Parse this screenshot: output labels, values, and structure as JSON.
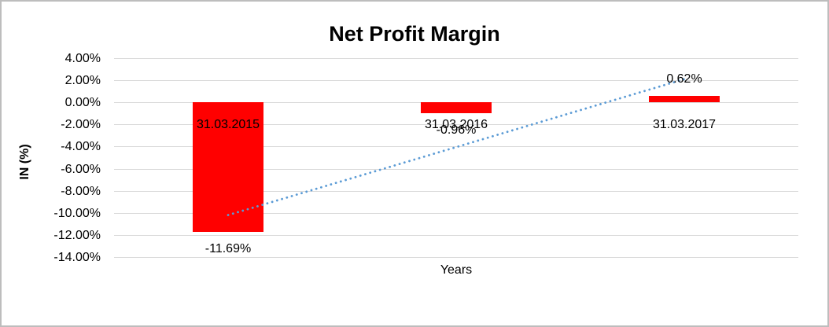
{
  "chart_data": {
    "type": "bar",
    "title": "Net Profit Margin",
    "ylabel": "IN (%)",
    "xlabel": "Years",
    "categories": [
      "31.03.2015",
      "31.03.2016",
      "31.03.2017"
    ],
    "values": [
      -11.69,
      -0.96,
      0.62
    ],
    "data_labels": [
      "-11.69%",
      "-0.96%",
      "0.62%"
    ],
    "y_ticks": [
      {
        "label": "4.00%",
        "value": 4
      },
      {
        "label": "2.00%",
        "value": 2
      },
      {
        "label": "0.00%",
        "value": 0
      },
      {
        "label": "-2.00%",
        "value": -2
      },
      {
        "label": "-4.00%",
        "value": -4
      },
      {
        "label": "-6.00%",
        "value": -6
      },
      {
        "label": "-8.00%",
        "value": -8
      },
      {
        "label": "-10.00%",
        "value": -10
      },
      {
        "label": "-12.00%",
        "value": -12
      },
      {
        "label": "-14.00%",
        "value": -14
      }
    ],
    "ylim": [
      -14,
      4
    ],
    "grid": "horizontal",
    "legend": "none",
    "bar_color": "#ff0000",
    "gridline_color": "#d9d9d9",
    "text_color": "#000000",
    "trendline": {
      "style": "dotted",
      "color": "#5b9bd5",
      "start_value": -10.2,
      "end_value": 2.1
    }
  }
}
